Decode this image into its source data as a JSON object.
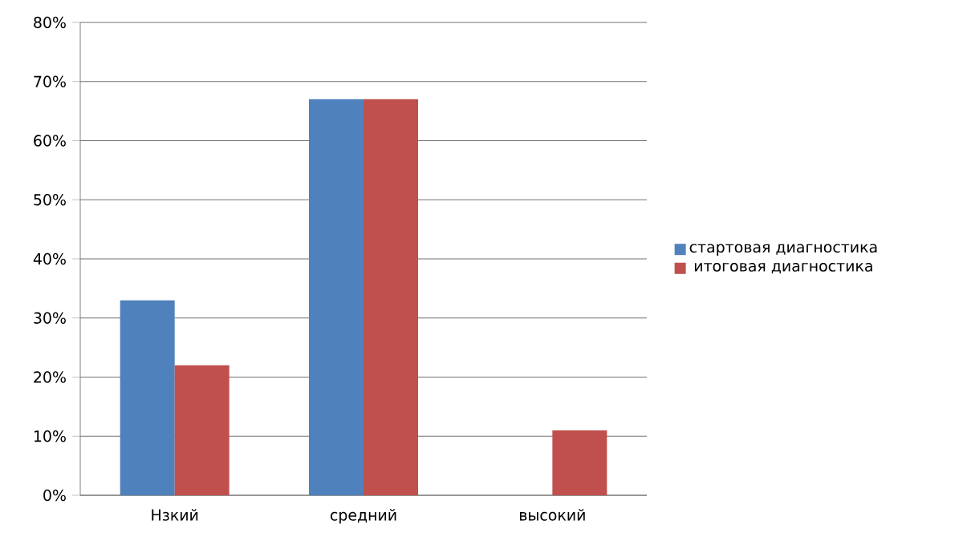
{
  "chart_data": {
    "type": "bar",
    "categories": [
      "Нзкий",
      "средний",
      "высокий"
    ],
    "series": [
      {
        "name": "стартовая диагностика",
        "color": "#4f81bd",
        "values": [
          33,
          67,
          0
        ]
      },
      {
        "name": "итоговая диагностика",
        "color": "#c0504d",
        "values": [
          22,
          67,
          11
        ]
      }
    ],
    "ylim": [
      0,
      80
    ],
    "yticks": [
      {
        "value": 0,
        "label": "0%"
      },
      {
        "value": 10,
        "label": "10%"
      },
      {
        "value": 20,
        "label": "20%"
      },
      {
        "value": 30,
        "label": "30%"
      },
      {
        "value": 40,
        "label": "40%"
      },
      {
        "value": 50,
        "label": "50%"
      },
      {
        "value": 60,
        "label": "60%"
      },
      {
        "value": 70,
        "label": "70%"
      },
      {
        "value": 80,
        "label": "80%"
      }
    ],
    "grid": "y",
    "legend": "right"
  }
}
